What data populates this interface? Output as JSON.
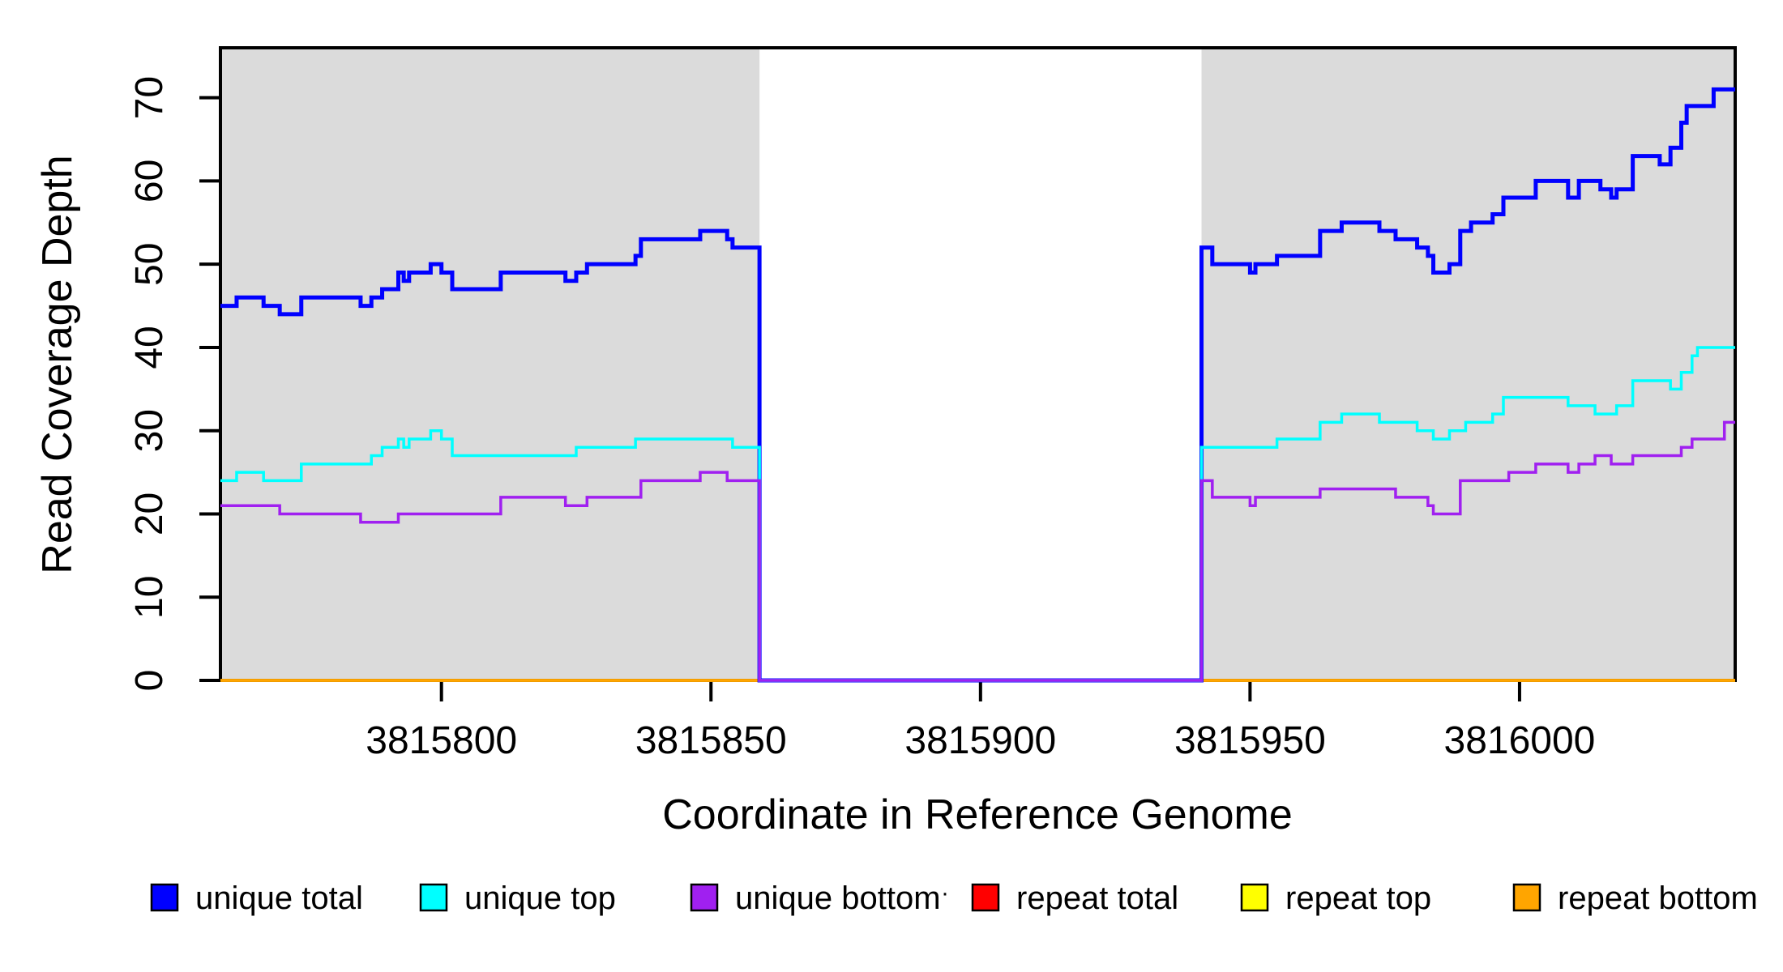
{
  "chart_data": {
    "type": "step-line",
    "title": "",
    "xlabel": "Coordinate in Reference Genome",
    "ylabel": "Read Coverage Depth",
    "xlim": [
      3815759,
      3816040
    ],
    "ylim": [
      0,
      76
    ],
    "x_ticks": [
      3815800,
      3815850,
      3815900,
      3815950,
      3816000
    ],
    "y_ticks": [
      0,
      10,
      20,
      30,
      40,
      50,
      60,
      70
    ],
    "grid": false,
    "legend_position": "bottom",
    "axis_color": "#000000",
    "background_color": "#ffffff",
    "shaded_regions": {
      "color": "#dbdbdb",
      "spans": [
        [
          3815759,
          3815859
        ],
        [
          3815941,
          3816040
        ]
      ]
    },
    "gap_region": [
      3815859,
      3815941
    ],
    "legend_stray_mark": "·",
    "series": [
      {
        "name": "unique total",
        "color": "#0000ff",
        "width": 5,
        "steps": [
          [
            3815759,
            45
          ],
          [
            3815762,
            46
          ],
          [
            3815767,
            45
          ],
          [
            3815770,
            44
          ],
          [
            3815774,
            46
          ],
          [
            3815785,
            45
          ],
          [
            3815787,
            46
          ],
          [
            3815789,
            47
          ],
          [
            3815792,
            49
          ],
          [
            3815793,
            48
          ],
          [
            3815794,
            49
          ],
          [
            3815798,
            50
          ],
          [
            3815800,
            49
          ],
          [
            3815802,
            47
          ],
          [
            3815811,
            49
          ],
          [
            3815823,
            48
          ],
          [
            3815825,
            49
          ],
          [
            3815827,
            50
          ],
          [
            3815836,
            51
          ],
          [
            3815837,
            53
          ],
          [
            3815848,
            54
          ],
          [
            3815853,
            53
          ],
          [
            3815854,
            52
          ],
          [
            3815859,
            0
          ],
          [
            3815941,
            52
          ],
          [
            3815943,
            50
          ],
          [
            3815950,
            49
          ],
          [
            3815951,
            50
          ],
          [
            3815955,
            51
          ],
          [
            3815963,
            54
          ],
          [
            3815967,
            55
          ],
          [
            3815974,
            54
          ],
          [
            3815977,
            53
          ],
          [
            3815981,
            52
          ],
          [
            3815983,
            51
          ],
          [
            3815984,
            49
          ],
          [
            3815987,
            50
          ],
          [
            3815989,
            54
          ],
          [
            3815991,
            55
          ],
          [
            3815995,
            56
          ],
          [
            3815997,
            58
          ],
          [
            3816003,
            60
          ],
          [
            3816009,
            58
          ],
          [
            3816011,
            60
          ],
          [
            3816015,
            59
          ],
          [
            3816017,
            58
          ],
          [
            3816018,
            59
          ],
          [
            3816021,
            63
          ],
          [
            3816026,
            62
          ],
          [
            3816028,
            64
          ],
          [
            3816030,
            67
          ],
          [
            3816031,
            69
          ],
          [
            3816036,
            71
          ],
          [
            3816040,
            71
          ]
        ]
      },
      {
        "name": "unique top",
        "color": "#00ffff",
        "width": 3.5,
        "steps": [
          [
            3815759,
            24
          ],
          [
            3815762,
            25
          ],
          [
            3815767,
            24
          ],
          [
            3815774,
            26
          ],
          [
            3815787,
            27
          ],
          [
            3815789,
            28
          ],
          [
            3815792,
            29
          ],
          [
            3815793,
            28
          ],
          [
            3815794,
            29
          ],
          [
            3815798,
            30
          ],
          [
            3815800,
            29
          ],
          [
            3815802,
            27
          ],
          [
            3815825,
            28
          ],
          [
            3815836,
            29
          ],
          [
            3815854,
            28
          ],
          [
            3815859,
            0
          ],
          [
            3815941,
            28
          ],
          [
            3815955,
            29
          ],
          [
            3815963,
            31
          ],
          [
            3815967,
            32
          ],
          [
            3815974,
            31
          ],
          [
            3815981,
            30
          ],
          [
            3815984,
            29
          ],
          [
            3815987,
            30
          ],
          [
            3815990,
            31
          ],
          [
            3815995,
            32
          ],
          [
            3815997,
            34
          ],
          [
            3816009,
            33
          ],
          [
            3816014,
            32
          ],
          [
            3816018,
            33
          ],
          [
            3816021,
            36
          ],
          [
            3816028,
            35
          ],
          [
            3816030,
            37
          ],
          [
            3816032,
            39
          ],
          [
            3816033,
            40
          ],
          [
            3816040,
            40
          ]
        ]
      },
      {
        "name": "unique bottom",
        "color": "#a020f0",
        "width": 3.5,
        "steps": [
          [
            3815759,
            21
          ],
          [
            3815770,
            20
          ],
          [
            3815785,
            19
          ],
          [
            3815792,
            20
          ],
          [
            3815811,
            22
          ],
          [
            3815823,
            21
          ],
          [
            3815827,
            22
          ],
          [
            3815837,
            24
          ],
          [
            3815848,
            25
          ],
          [
            3815853,
            24
          ],
          [
            3815859,
            0
          ],
          [
            3815941,
            24
          ],
          [
            3815943,
            22
          ],
          [
            3815950,
            21
          ],
          [
            3815951,
            22
          ],
          [
            3815963,
            23
          ],
          [
            3815977,
            22
          ],
          [
            3815983,
            21
          ],
          [
            3815984,
            20
          ],
          [
            3815989,
            24
          ],
          [
            3815998,
            25
          ],
          [
            3816003,
            26
          ],
          [
            3816009,
            25
          ],
          [
            3816011,
            26
          ],
          [
            3816014,
            27
          ],
          [
            3816017,
            26
          ],
          [
            3816021,
            27
          ],
          [
            3816030,
            28
          ],
          [
            3816032,
            29
          ],
          [
            3816038,
            31
          ],
          [
            3816040,
            31
          ]
        ]
      },
      {
        "name": "repeat total",
        "color": "#ff0000",
        "width": 3.5,
        "steps": [
          [
            3815759,
            0
          ],
          [
            3816040,
            0
          ]
        ]
      },
      {
        "name": "repeat top",
        "color": "#ffff00",
        "width": 3.5,
        "steps": [
          [
            3815759,
            0
          ],
          [
            3816040,
            0
          ]
        ]
      },
      {
        "name": "repeat bottom",
        "color": "#ffa500",
        "width": 3.5,
        "steps": [
          [
            3815759,
            0
          ],
          [
            3816040,
            0
          ]
        ]
      }
    ]
  }
}
